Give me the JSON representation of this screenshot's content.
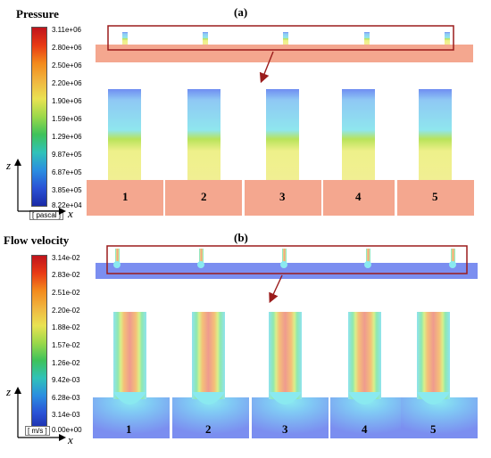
{
  "panels": {
    "a": {
      "label": "(a)",
      "legend_title": "Pressure",
      "unit": "[ pascal ]",
      "ticks": [
        "3.11e+06",
        "2.80e+06",
        "2.50e+06",
        "2.20e+06",
        "1.90e+06",
        "1.59e+06",
        "1.29e+06",
        "9.87e+05",
        "6.87e+05",
        "3.85e+05",
        "8.22e+04"
      ],
      "channels": [
        "1",
        "2",
        "3",
        "4",
        "5"
      ]
    },
    "b": {
      "label": "(b)",
      "legend_title": "Flow velocity",
      "unit": "[ m/s ]",
      "ticks": [
        "3.14e-02",
        "2.83e-02",
        "2.51e-02",
        "2.20e-02",
        "1.88e-02",
        "1.57e-02",
        "1.26e-02",
        "9.42e-03",
        "6.28e-03",
        "3.14e-03",
        "0.00e+00"
      ],
      "channels": [
        "1",
        "2",
        "3",
        "4",
        "5"
      ]
    }
  },
  "axes": {
    "z": "z",
    "x": "x"
  },
  "colors": {
    "inset_box": "#9b1c1c",
    "arrow": "#9b1c1c",
    "pressure_base": "#f4a78f",
    "velocity_base": "#7b8ef0"
  }
}
